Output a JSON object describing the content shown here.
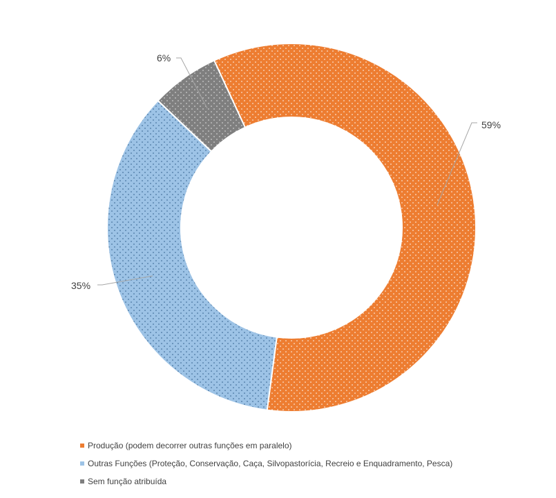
{
  "chart_data": {
    "type": "pie",
    "variant": "doughnut",
    "title": "",
    "categories": [
      "Produção (podem decorrer outras funções em paralelo)",
      "Outras Funções (Proteção, Conservação, Caça, Silvopastorícia, Recreio e Enquadramento, Pesca)",
      "Sem função atribuída"
    ],
    "values": [
      59,
      35,
      6
    ],
    "data_labels": [
      "59%",
      "35%",
      "6%"
    ],
    "colors": [
      "#ED7D31",
      "#9DC3E6",
      "#7F7F7F"
    ],
    "legend": {
      "placement": "bottom-left"
    }
  }
}
